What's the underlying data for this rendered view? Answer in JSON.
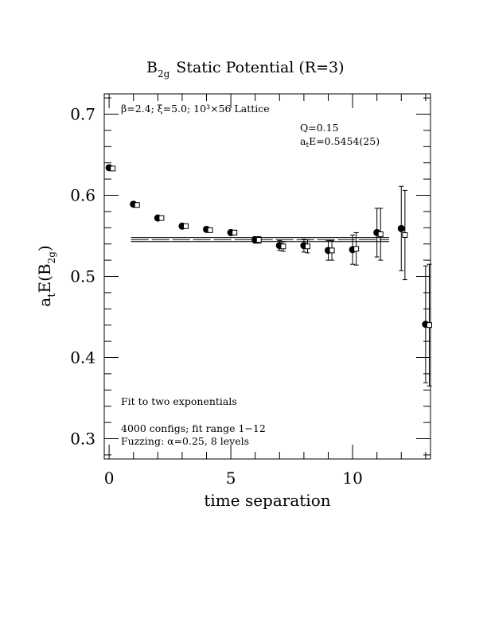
{
  "chart_data": {
    "type": "scatter",
    "title_main": "B",
    "title_sub": "2g",
    "title_rest": "Static Potential (R=3)",
    "xlabel": "time separation",
    "ylabel_pre": "a",
    "ylabel_t": "t",
    "ylabel_mid": "E(B",
    "ylabel_sub": "2g",
    "ylabel_post": ")",
    "xlim": [
      -0.2,
      13.2
    ],
    "ylim": [
      0.275,
      0.725
    ],
    "x_ticks": [
      0,
      5,
      10
    ],
    "x_tick_labels": [
      "0",
      "5",
      "10"
    ],
    "y_ticks": [
      0.3,
      0.4,
      0.5,
      0.6,
      0.7
    ],
    "y_tick_labels": [
      "0.3",
      "0.4",
      "0.5",
      "0.6",
      "0.7"
    ],
    "grid": false,
    "annotations": {
      "lattice": "β=2.4; ξ=5.0; 10³×56 Lattice",
      "q": "Q=0.15",
      "energy_pre": "a",
      "energy_sub": "t",
      "energy_rest": "E=0.5454(25)",
      "fit_type": "Fit to two exponentials",
      "configs": "4000 configs; fit range 1−12",
      "fuzzing": "Fuzzing: α=0.25, 8 levels"
    },
    "fit": {
      "value": 0.5454,
      "error": 0.0025,
      "x_range": [
        1,
        12
      ]
    },
    "series": [
      {
        "marker": "filled-circle",
        "x": [
          0,
          1,
          2,
          3,
          4,
          5,
          6,
          7,
          8,
          9,
          10,
          11,
          12,
          13
        ],
        "y": [
          0.634,
          0.589,
          0.572,
          0.562,
          0.558,
          0.554,
          0.545,
          0.538,
          0.538,
          0.532,
          0.533,
          0.554,
          0.559,
          0.441
        ],
        "err": [
          0.002,
          0.002,
          0.002,
          0.002,
          0.002,
          0.003,
          0.004,
          0.006,
          0.008,
          0.012,
          0.018,
          0.03,
          0.052,
          0.072
        ]
      },
      {
        "marker": "open-square",
        "x": [
          0.15,
          1.15,
          2.15,
          3.15,
          4.15,
          5.15,
          6.15,
          7.15,
          8.15,
          9.15,
          10.15,
          11.15,
          12.15,
          13.15
        ],
        "y": [
          0.633,
          0.588,
          0.572,
          0.562,
          0.557,
          0.554,
          0.545,
          0.537,
          0.537,
          0.532,
          0.534,
          0.552,
          0.551,
          0.44
        ],
        "err": [
          0.002,
          0.002,
          0.002,
          0.002,
          0.002,
          0.003,
          0.004,
          0.006,
          0.008,
          0.012,
          0.02,
          0.032,
          0.055,
          0.075
        ]
      }
    ]
  }
}
